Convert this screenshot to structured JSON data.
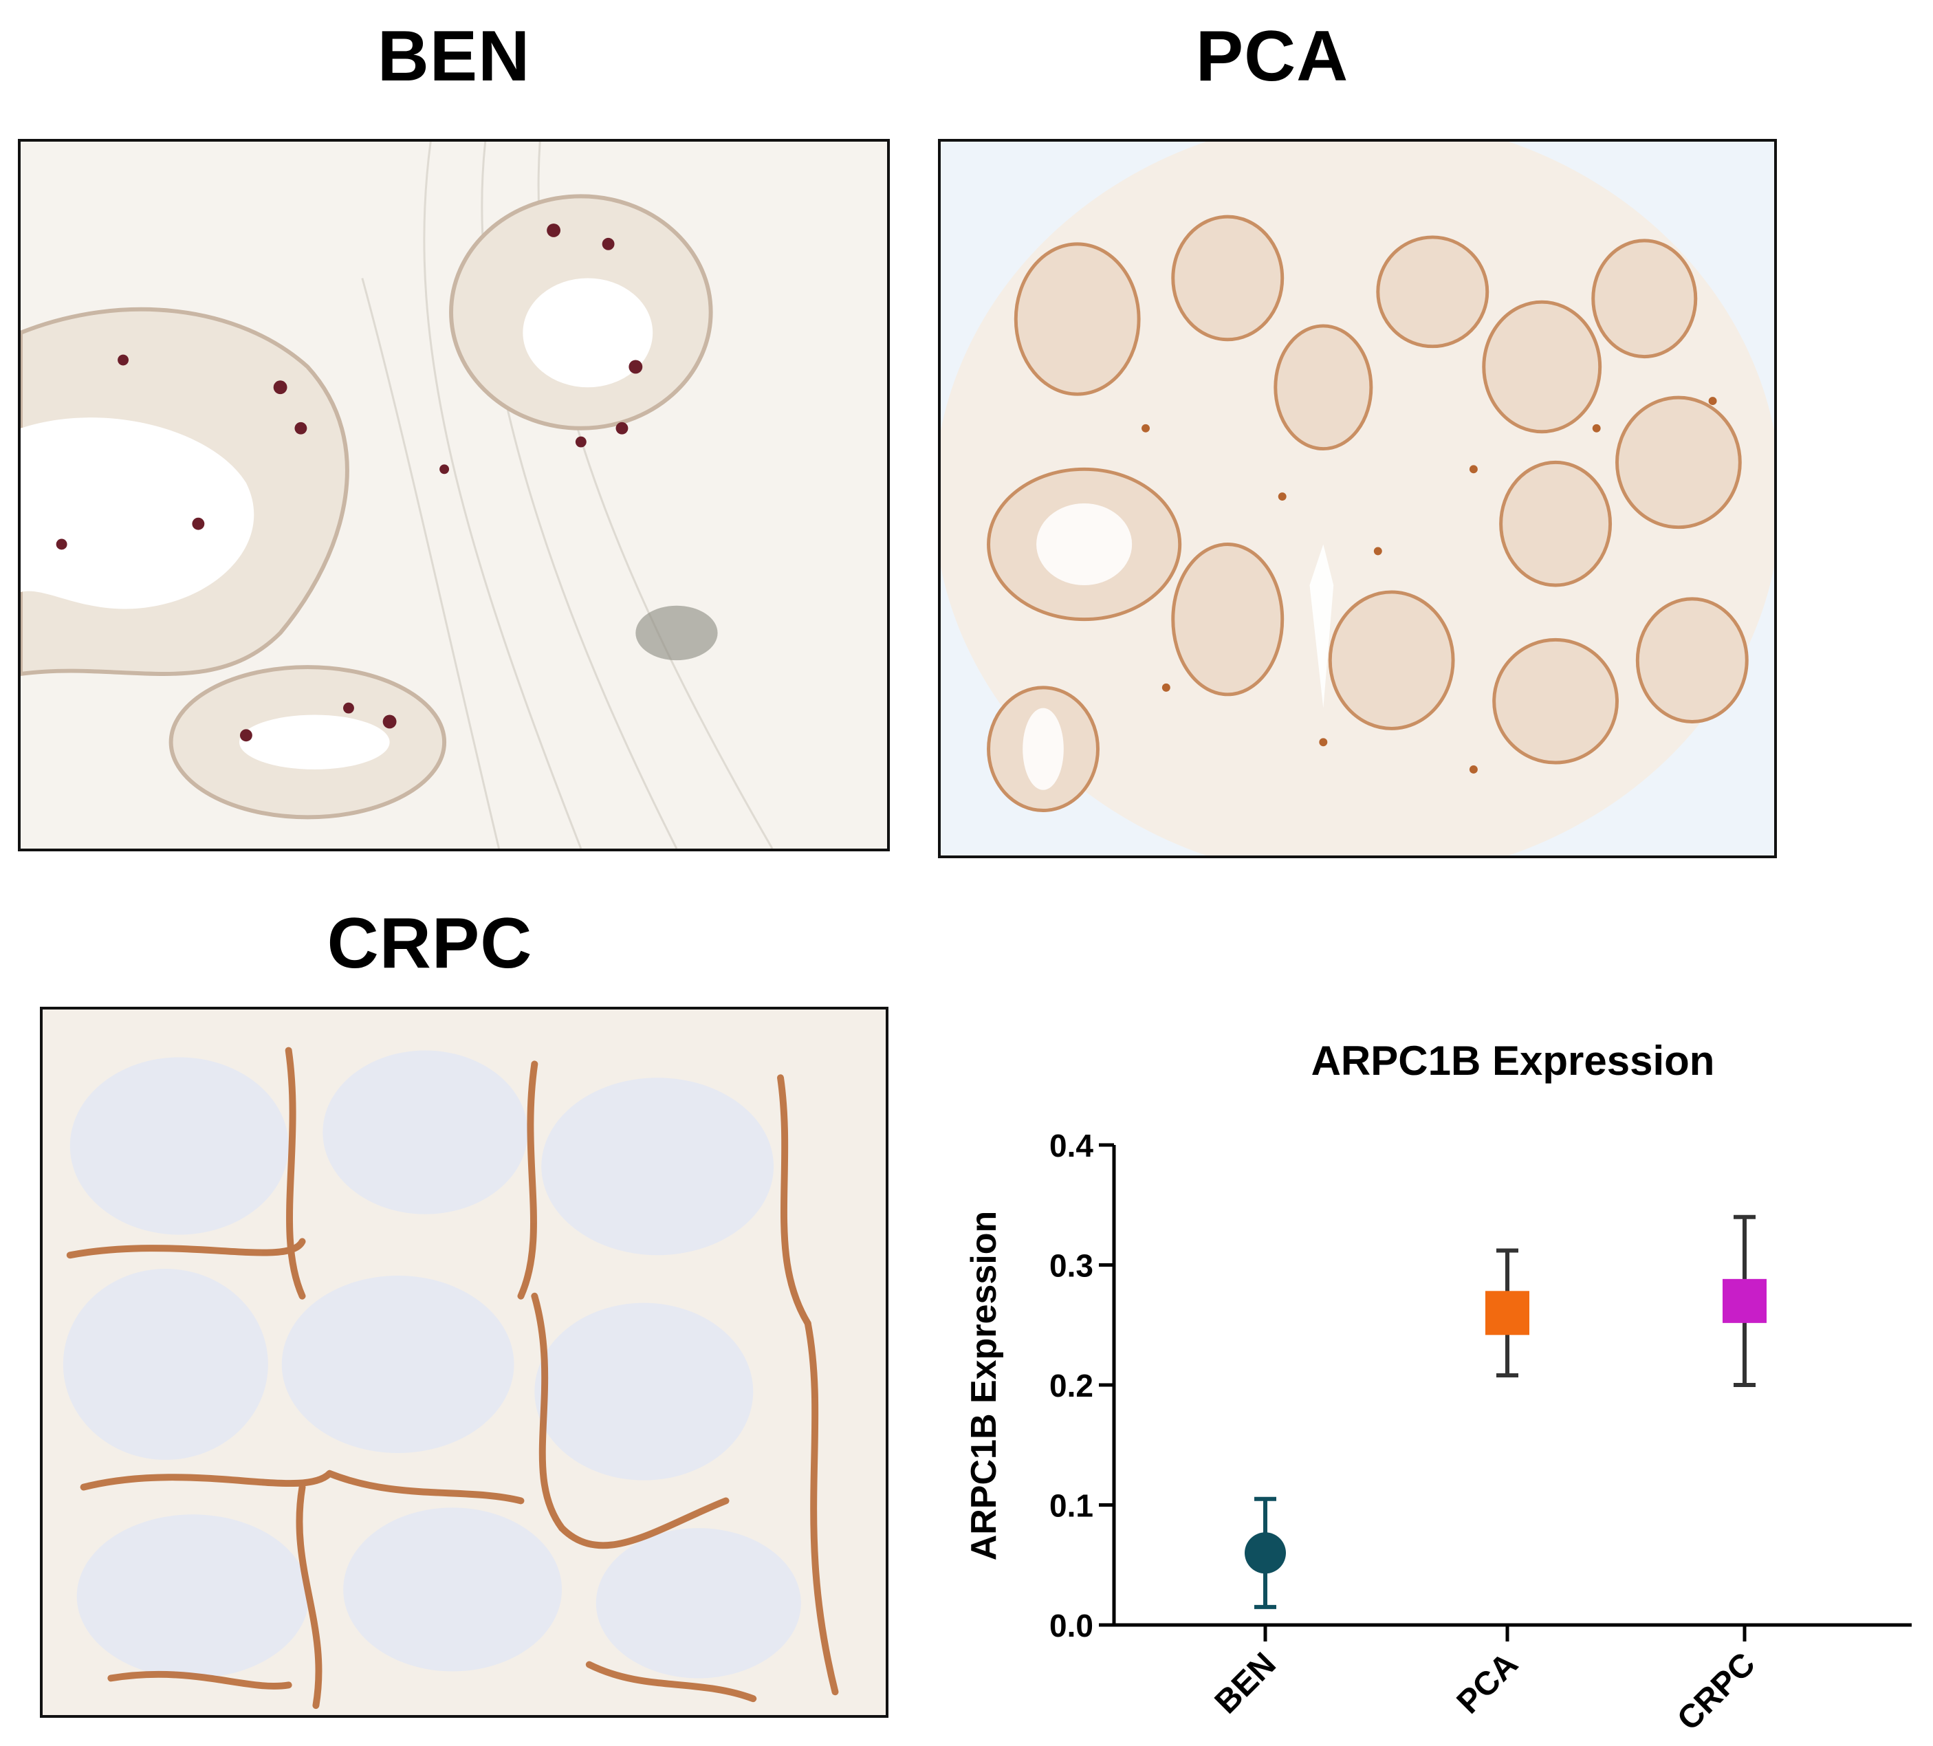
{
  "panels": [
    {
      "id": "ben",
      "title": "BEN"
    },
    {
      "id": "pca",
      "title": "PCA"
    },
    {
      "id": "crpc",
      "title": "CRPC"
    }
  ],
  "colors": {
    "ben": "#0f4f5e",
    "pca": "#f26a10",
    "crpc": "#c81ec8",
    "errorbar_neutral": "#333333",
    "stain_brown": "#b5642e",
    "stain_dark": "#6b1e2a",
    "hematoxylin": "#a8b8e0"
  },
  "chart_data": {
    "type": "scatter",
    "title": "ARPC1B Expression",
    "ylabel": "ARPC1B Expression",
    "xlabel": "",
    "categories": [
      "BEN",
      "PCA",
      "CRPC"
    ],
    "values": [
      0.06,
      0.26,
      0.27
    ],
    "errors_low": [
      0.015,
      0.208,
      0.2
    ],
    "errors_high": [
      0.105,
      0.312,
      0.34
    ],
    "markers": [
      "circle",
      "square",
      "square"
    ],
    "ylim": [
      0.0,
      0.4
    ],
    "yticks": [
      "0.0",
      "0.1",
      "0.2",
      "0.3",
      "0.4"
    ],
    "grid": false
  }
}
